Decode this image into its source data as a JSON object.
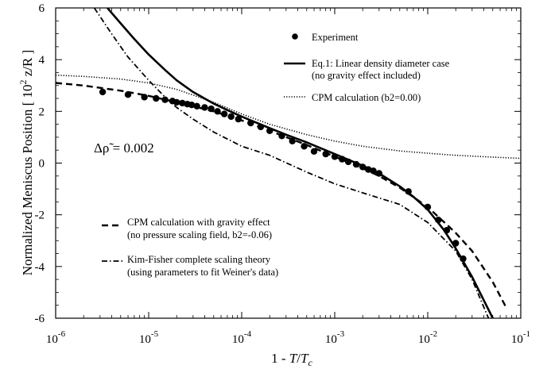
{
  "chart_data": {
    "type": "line",
    "xscale": "log",
    "xlim": [
      1e-06,
      0.1
    ],
    "ylim": [
      -6,
      6
    ],
    "xlabel": "1 - T/Tc",
    "xlabel_parts": {
      "pre": "1 - ",
      "num": "T",
      "slash": "/",
      "den": "T",
      "den_sub": "c"
    },
    "ylabel": "Normalized Meniscus Position [ 10² z/R ]",
    "ylabel_parts": {
      "pre": "Normalized Meniscus Position [ 10",
      "exp": "2",
      "post": " z/R ]"
    },
    "x_ticks": [
      {
        "base": "10",
        "exp": "-6",
        "value": 1e-06
      },
      {
        "base": "10",
        "exp": "-5",
        "value": 1e-05
      },
      {
        "base": "10",
        "exp": "-4",
        "value": 0.0001
      },
      {
        "base": "10",
        "exp": "-3",
        "value": 0.001
      },
      {
        "base": "10",
        "exp": "-2",
        "value": 0.01
      },
      {
        "base": "10",
        "exp": "-1",
        "value": 0.1
      }
    ],
    "y_ticks": [
      {
        "label": "6",
        "value": 6
      },
      {
        "label": "4",
        "value": 4
      },
      {
        "label": "2",
        "value": 2
      },
      {
        "label": "0",
        "value": 0
      },
      {
        "label": "-2",
        "value": -2
      },
      {
        "label": "-4",
        "value": -4
      },
      {
        "label": "-6",
        "value": -6
      }
    ],
    "annotation": "Δρ̃ = 0.002",
    "grid": false,
    "series": [
      {
        "name": "Experiment",
        "style": "points",
        "color": "#000000",
        "x": [
          3.2e-06,
          6e-06,
          9e-06,
          1.2e-05,
          1.5e-05,
          1.8e-05,
          2e-05,
          2.3e-05,
          2.6e-05,
          2.9e-05,
          3.3e-05,
          4e-05,
          4.7e-05,
          5.5e-05,
          6.5e-05,
          7.7e-05,
          9.2e-05,
          0.000125,
          0.00016,
          0.0002,
          0.00027,
          0.00035,
          0.00047,
          0.0006,
          0.0008,
          0.001,
          0.0012,
          0.0014,
          0.0017,
          0.002,
          0.0023,
          0.0026,
          0.003,
          0.0062,
          0.01,
          0.013,
          0.016,
          0.02,
          0.024
        ],
        "y": [
          2.75,
          2.65,
          2.55,
          2.5,
          2.45,
          2.4,
          2.35,
          2.32,
          2.28,
          2.25,
          2.2,
          2.15,
          2.1,
          2.0,
          1.9,
          1.8,
          1.7,
          1.55,
          1.4,
          1.25,
          1.05,
          0.85,
          0.65,
          0.45,
          0.35,
          0.25,
          0.15,
          0.05,
          -0.05,
          -0.15,
          -0.25,
          -0.3,
          -0.4,
          -1.1,
          -1.7,
          -2.2,
          -2.6,
          -3.1,
          -3.7
        ]
      },
      {
        "name": "Eq.1: Linear density diameter case (no gravity effect included)",
        "legend_lines": [
          "Eq.1: Linear density diameter case",
          "(no gravity effect included)"
        ],
        "style": "solid",
        "color": "#000000",
        "x": [
          3.6e-06,
          5e-06,
          7e-06,
          1e-05,
          1.5e-05,
          2e-05,
          3e-05,
          5e-05,
          7e-05,
          0.0001,
          0.0002,
          0.0003,
          0.0005,
          0.001,
          0.002,
          0.003,
          0.005,
          0.007,
          0.01,
          0.015,
          0.02,
          0.03,
          0.04,
          0.05
        ],
        "y": [
          6.0,
          5.4,
          4.8,
          4.2,
          3.6,
          3.2,
          2.75,
          2.3,
          2.05,
          1.8,
          1.35,
          1.1,
          0.8,
          0.35,
          -0.1,
          -0.4,
          -0.9,
          -1.3,
          -1.8,
          -2.6,
          -3.3,
          -4.4,
          -5.3,
          -6.0
        ]
      },
      {
        "name": "CPM calculation (b2=0.00)",
        "legend_lines": [
          "CPM calculation (b2=0.00)"
        ],
        "style": "dotted",
        "color": "#000000",
        "x": [
          1e-06,
          2e-06,
          5e-06,
          1e-05,
          2e-05,
          5e-05,
          0.0001,
          0.0002,
          0.0005,
          0.001,
          0.002,
          0.005,
          0.01,
          0.02,
          0.05,
          0.1
        ],
        "y": [
          3.4,
          3.35,
          3.25,
          3.1,
          2.85,
          2.35,
          1.9,
          1.5,
          1.1,
          0.85,
          0.65,
          0.47,
          0.38,
          0.3,
          0.23,
          0.18
        ]
      },
      {
        "name": "CPM calculation with gravity effect (no pressure scaling field, b2=-0.06)",
        "legend_lines": [
          "CPM calculation with gravity effect",
          "(no pressure scaling field, b2=-0.06)"
        ],
        "style": "dashed",
        "color": "#000000",
        "x": [
          1e-06,
          2e-06,
          5e-06,
          1e-05,
          2e-05,
          5e-05,
          0.0001,
          0.0002,
          0.0005,
          0.001,
          0.002,
          0.003,
          0.005,
          0.01,
          0.02,
          0.03,
          0.05,
          0.07
        ],
        "y": [
          3.1,
          3.0,
          2.8,
          2.6,
          2.35,
          2.0,
          1.65,
          1.25,
          0.7,
          0.25,
          -0.2,
          -0.5,
          -0.95,
          -1.7,
          -2.7,
          -3.4,
          -4.6,
          -5.6
        ]
      },
      {
        "name": "Kim-Fisher complete scaling theory (using parameters to fit Weiner's data)",
        "legend_lines": [
          "Kim-Fisher complete scaling theory",
          "(using parameters to fit Weiner's data)"
        ],
        "style": "dashdot",
        "color": "#000000",
        "x": [
          2.6e-06,
          4e-06,
          6e-06,
          1e-05,
          1.5e-05,
          2e-05,
          3e-05,
          5e-05,
          0.0001,
          0.0002,
          0.0005,
          0.001,
          0.002,
          0.005,
          0.01,
          0.02,
          0.03,
          0.045
        ],
        "y": [
          6.0,
          5.0,
          4.1,
          3.2,
          2.55,
          2.15,
          1.7,
          1.2,
          0.65,
          0.3,
          -0.35,
          -0.8,
          -1.15,
          -1.6,
          -2.3,
          -3.4,
          -4.5,
          -6.0
        ]
      }
    ]
  }
}
